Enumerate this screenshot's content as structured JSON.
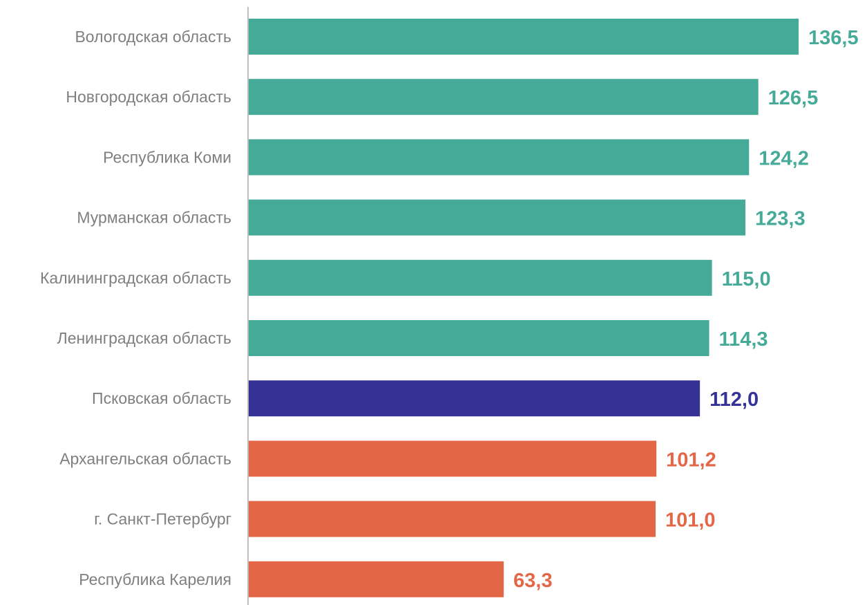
{
  "chart_data": {
    "type": "bar",
    "orientation": "horizontal",
    "categories": [
      "Вологодская область",
      "Новгородская область",
      "Республика Коми",
      "Мурманская область",
      "Калининградская область",
      "Ленинградская область",
      "Псковская область",
      "Архангельская область",
      "г. Санкт-Петербург",
      "Республика Карелия"
    ],
    "values": [
      136.5,
      126.5,
      124.2,
      123.3,
      115.0,
      114.3,
      112.0,
      101.2,
      101.0,
      63.3
    ],
    "value_labels": [
      "136,5",
      "126,5",
      "124,2",
      "123,3",
      "115,0",
      "114,3",
      "112,0",
      "101,2",
      "101,0",
      "63,3"
    ],
    "groups": [
      "above",
      "above",
      "above",
      "above",
      "above",
      "above",
      "highlight",
      "below",
      "below",
      "below"
    ],
    "colors": {
      "above": "#45ab98",
      "highlight": "#353295",
      "below": "#e36747",
      "axis": "#bfbfbf",
      "category_text": "#7f7f7f"
    },
    "xlim": [
      0,
      140
    ],
    "grid": false,
    "legend": "none",
    "title": "",
    "xlabel": "",
    "ylabel": ""
  }
}
